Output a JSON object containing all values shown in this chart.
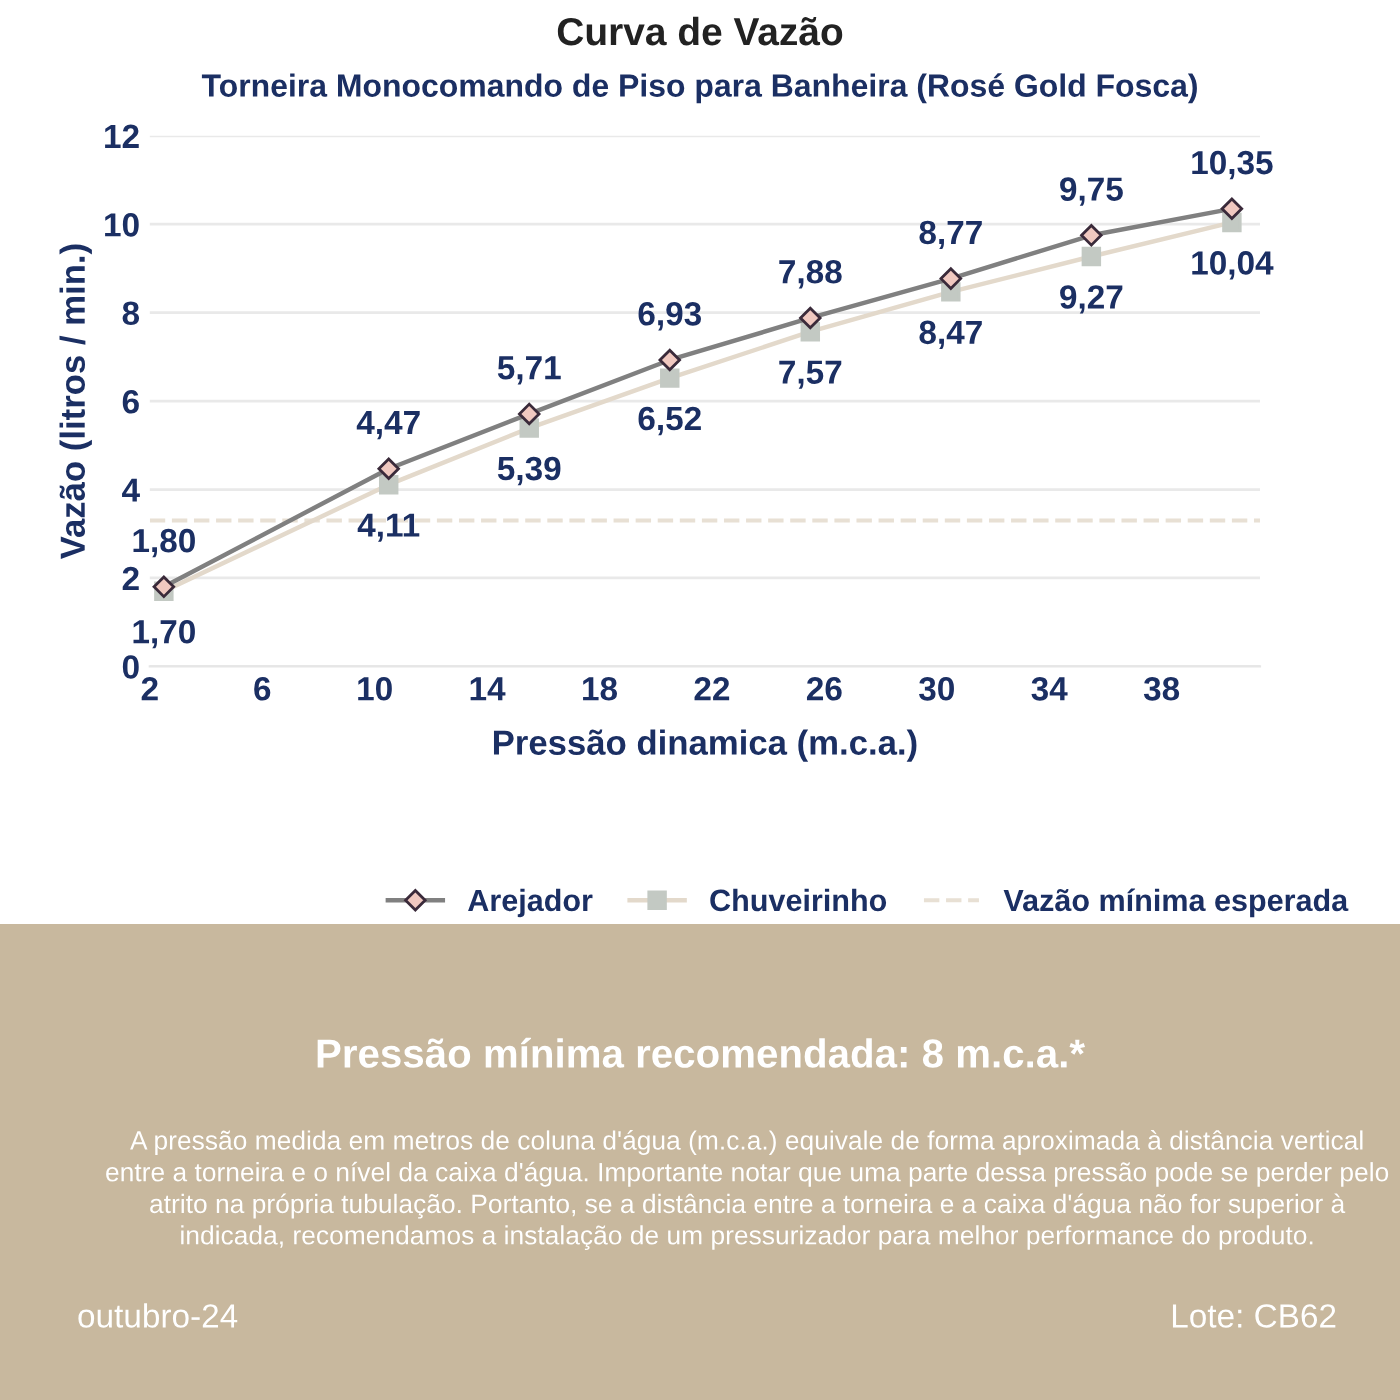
{
  "chart_data": {
    "type": "line",
    "title": "Curva de Vazão",
    "subtitle": "Torneira Monocomando de Piso para Banheira (Rosé Gold Fosca)",
    "xlabel": "Pressão dinamica (m.c.a.)",
    "ylabel": "Vazão (litros / min.)",
    "x": [
      2.5,
      10.5,
      15.5,
      20.5,
      25.5,
      30.5,
      35.5,
      40.5
    ],
    "series": [
      {
        "name": "Arejador",
        "color": "#808080",
        "marker": "diamond",
        "values": [
          1.8,
          4.47,
          5.71,
          6.93,
          7.88,
          8.77,
          9.75,
          10.35
        ],
        "value_labels": [
          "1,80",
          "4,47",
          "5,71",
          "6,93",
          "7,88",
          "8,77",
          "9,75",
          "10,35"
        ]
      },
      {
        "name": "Chuveirinho",
        "color": "#e3d9cb",
        "marker": "square",
        "values": [
          1.7,
          4.11,
          5.39,
          6.52,
          7.57,
          8.47,
          9.27,
          10.04
        ],
        "value_labels": [
          "1,70",
          "4,11",
          "5,39",
          "6,52",
          "7,57",
          "8,47",
          "9,27",
          "10,04"
        ]
      }
    ],
    "ref_lines": [
      {
        "axis": "y",
        "value": 3.3,
        "label": "Vazão mínima esperada",
        "color": "#e8e0d4",
        "line_style": "dashed"
      }
    ],
    "xlim": [
      2,
      41.5
    ],
    "xticks": [
      2,
      6,
      10,
      14,
      18,
      22,
      26,
      30,
      34,
      38
    ],
    "ylim": [
      0,
      12
    ],
    "yticks": [
      0,
      2,
      4,
      6,
      8,
      10,
      12
    ],
    "grid": "y",
    "legend": "bottom",
    "line_style": "solid",
    "annotations": [
      "Pressão mínima recomendada: 8 m.c.a.*",
      "A pressão medida em metros de coluna d'água (m.c.a.) equivale de forma aproximada à distância vertical entre a torneira e o nível da caixa d'água. Importante notar que uma parte dessa pressão pode se perder pelo atrito na própria tubulação. Portanto, se a distância entre a torneira e a caixa d'água não for superior à indicada, recomendamos a instalação de um pressurizador para melhor performance do produto.",
      "outubro-24",
      "Lote: CB62"
    ]
  }
}
